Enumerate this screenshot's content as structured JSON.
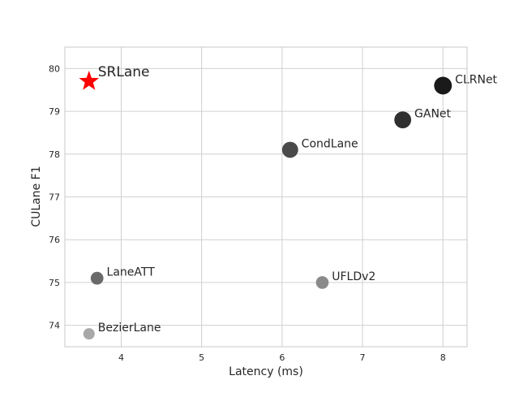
{
  "chart_data": {
    "type": "scatter",
    "xlabel": "Latency (ms)",
    "ylabel": "CULane  F1",
    "xlim": [
      3.3,
      8.3
    ],
    "ylim": [
      73.5,
      80.5
    ],
    "xticks": [
      4,
      5,
      6,
      7,
      8
    ],
    "yticks": [
      74,
      75,
      76,
      77,
      78,
      79,
      80
    ],
    "grid": true,
    "points": [
      {
        "label": "SRLane",
        "x": 3.6,
        "y": 79.7,
        "marker": "star",
        "color": "#ff0000",
        "emphasis": true
      },
      {
        "label": "CLRNet",
        "x": 8.0,
        "y": 79.6,
        "marker": "circle",
        "color": "#1a1a1a"
      },
      {
        "label": "GANet",
        "x": 7.5,
        "y": 78.8,
        "marker": "circle",
        "color": "#303030"
      },
      {
        "label": "CondLane",
        "x": 6.1,
        "y": 78.1,
        "marker": "circle",
        "color": "#4a4a4a"
      },
      {
        "label": "LaneATT",
        "x": 3.7,
        "y": 75.1,
        "marker": "circle",
        "color": "#6a6a6a"
      },
      {
        "label": "UFLDv2",
        "x": 6.5,
        "y": 75.0,
        "marker": "circle",
        "color": "#8a8a8a"
      },
      {
        "label": "BezierLane",
        "x": 3.6,
        "y": 73.8,
        "marker": "circle",
        "color": "#a8a8a8"
      }
    ]
  }
}
